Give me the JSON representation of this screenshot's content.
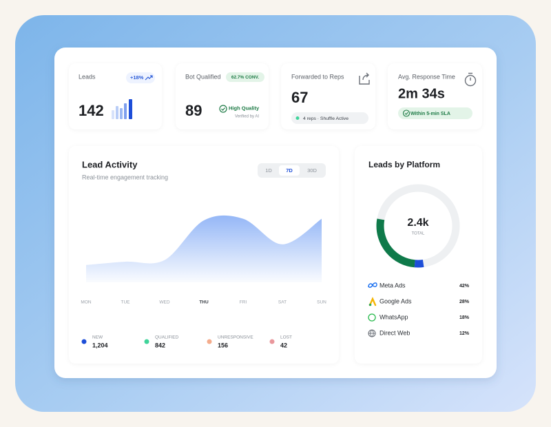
{
  "stats": [
    {
      "label": "Leads",
      "badge": "+18%",
      "value": "142"
    },
    {
      "label": "Bot Qualified",
      "badge": "62.7% CONV.",
      "value": "89",
      "status": "High Quality",
      "note": "Verified by AI"
    },
    {
      "label": "Forwarded to Reps",
      "value": "67",
      "pill": "4 reps · Shuffle Active"
    },
    {
      "label": "Avg. Response Time",
      "value": "2m 34s",
      "pill": "Within 5-min SLA"
    }
  ],
  "chart_data": {
    "type": "area",
    "title": "Lead Activity",
    "subtitle": "Real-time engagement tracking",
    "ranges": [
      "1D",
      "7D",
      "30D"
    ],
    "selected_range": 1,
    "categories": [
      "MON",
      "TUE",
      "WED",
      "THU",
      "FRI",
      "SAT",
      "SUN"
    ],
    "values": [
      21,
      25,
      27,
      75,
      77,
      46,
      77
    ],
    "ylim": [
      0,
      100
    ],
    "color": "#8fb3f6"
  },
  "summary": [
    {
      "label": "NEW",
      "value": "1,204",
      "color": "#1d4ed8"
    },
    {
      "label": "QUALIFIED",
      "value": "842",
      "color": "#3fd49a"
    },
    {
      "label": "UNRESPONSIVE",
      "value": "156",
      "color": "#f4ac8c"
    },
    {
      "label": "LOST",
      "value": "42",
      "color": "#e9979c"
    }
  ],
  "platforms": {
    "title": "Leads by Platform",
    "total": "2.4k",
    "total_label": "TOTAL",
    "items": [
      {
        "name": "Meta Ads",
        "share": "42%"
      },
      {
        "name": "Google Ads",
        "share": "28%"
      },
      {
        "name": "WhatsApp",
        "share": "18%"
      },
      {
        "name": "Direct Web",
        "share": "12%"
      }
    ]
  }
}
